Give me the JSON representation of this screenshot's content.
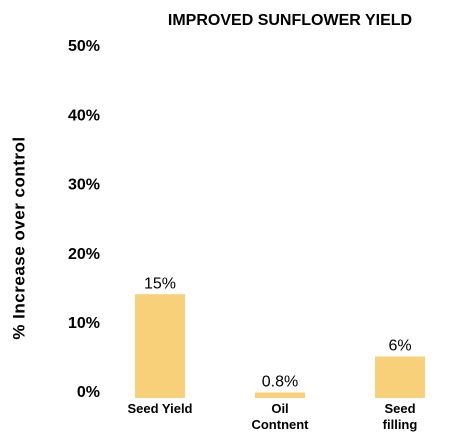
{
  "chart_data": {
    "type": "bar",
    "title": "IMPROVED SUNFLOWER YIELD",
    "ylabel": "% Increase over control",
    "categories": [
      "Seed Yield",
      "Oil\nContnent",
      "Seed\nfilling"
    ],
    "values": [
      15,
      0.8,
      6
    ],
    "value_labels": [
      "15%",
      "0.8%",
      "6%"
    ],
    "color": "#f9d07a",
    "ylim": [
      0,
      50
    ],
    "yticks": [
      {
        "value": 0,
        "label": "0%"
      },
      {
        "value": 10,
        "label": "10%"
      },
      {
        "value": 20,
        "label": "20%"
      },
      {
        "value": 30,
        "label": "30%"
      },
      {
        "value": 40,
        "label": "40%"
      },
      {
        "value": 50,
        "label": "50%"
      }
    ],
    "grid": false
  }
}
